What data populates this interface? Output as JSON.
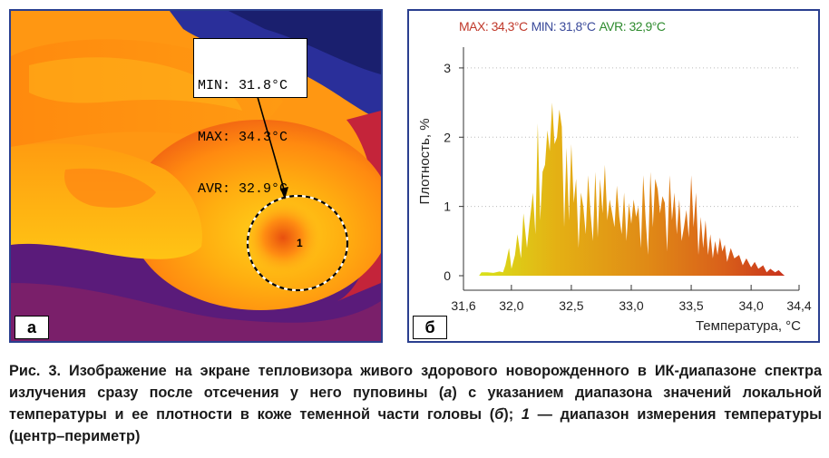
{
  "panel_a": {
    "letter": "а",
    "readout": {
      "min_line": "MIN: 31.8°C",
      "max_line": "MAX: 34.3°C",
      "avr_line": "AVR: 32.9°C"
    },
    "region_marker": "1"
  },
  "panel_b": {
    "letter": "б",
    "legend": {
      "max": "MAX: 34,3°C",
      "min": "MIN: 31,8°C",
      "avr": "AVR: 32,9°C",
      "colors": {
        "max": "#c0392b",
        "min": "#3a4a9a",
        "avr": "#2e8b2e"
      }
    }
  },
  "chart_data": {
    "type": "area",
    "xlabel": "Температура, °C",
    "ylabel": "Плотность, %",
    "xlim": [
      31.6,
      34.4
    ],
    "ylim": [
      0,
      3.3
    ],
    "x_ticks": [
      "31,6",
      "32,0",
      "32,5",
      "33,0",
      "33,5",
      "34,0",
      "34,4"
    ],
    "x_tick_values": [
      31.6,
      32.0,
      32.5,
      33.0,
      33.5,
      34.0,
      34.4
    ],
    "y_ticks": [
      "0",
      "1",
      "2",
      "3"
    ],
    "y_tick_values": [
      0,
      1,
      2,
      3
    ],
    "grid": "dotted-horizontal",
    "series": [
      {
        "x": [
          31.73,
          31.75,
          31.8,
          31.85,
          31.9,
          31.93,
          31.95,
          31.98,
          32.0,
          32.03,
          32.05,
          32.08,
          32.1,
          32.13,
          32.15,
          32.18,
          32.2,
          32.22,
          32.24,
          32.26,
          32.28,
          32.3,
          32.32,
          32.34,
          32.36,
          32.38,
          32.4,
          32.42,
          32.44,
          32.46,
          32.48,
          32.5,
          32.52,
          32.54,
          32.56,
          32.58,
          32.6,
          32.62,
          32.64,
          32.66,
          32.68,
          32.7,
          32.72,
          32.74,
          32.76,
          32.78,
          32.8,
          32.82,
          32.84,
          32.86,
          32.88,
          32.9,
          32.92,
          32.94,
          32.96,
          32.98,
          33.0,
          33.02,
          33.04,
          33.06,
          33.08,
          33.1,
          33.12,
          33.14,
          33.16,
          33.18,
          33.2,
          33.22,
          33.24,
          33.26,
          33.28,
          33.3,
          33.32,
          33.34,
          33.36,
          33.38,
          33.4,
          33.42,
          33.44,
          33.46,
          33.48,
          33.5,
          33.52,
          33.54,
          33.56,
          33.58,
          33.6,
          33.62,
          33.64,
          33.66,
          33.68,
          33.7,
          33.72,
          33.74,
          33.76,
          33.78,
          33.8,
          33.83,
          33.86,
          33.9,
          33.93,
          33.96,
          34.0,
          34.03,
          34.06,
          34.1,
          34.13,
          34.16,
          34.2,
          34.23,
          34.26,
          34.28
        ],
        "values": [
          0.0,
          0.05,
          0.05,
          0.04,
          0.06,
          0.05,
          0.15,
          0.4,
          0.1,
          0.3,
          0.6,
          0.25,
          0.9,
          0.4,
          0.75,
          1.2,
          0.6,
          2.2,
          0.8,
          1.5,
          1.6,
          2.1,
          1.8,
          2.5,
          1.9,
          2.0,
          2.4,
          2.15,
          0.7,
          1.85,
          0.8,
          1.9,
          1.05,
          1.4,
          0.4,
          1.2,
          1.0,
          0.6,
          1.45,
          0.9,
          0.5,
          1.5,
          0.55,
          1.4,
          0.9,
          1.6,
          0.8,
          1.1,
          0.9,
          0.7,
          1.3,
          0.85,
          0.6,
          1.2,
          0.5,
          1.05,
          0.75,
          1.1,
          0.85,
          1.0,
          0.4,
          1.45,
          0.8,
          0.3,
          1.5,
          0.7,
          1.4,
          1.25,
          0.9,
          1.15,
          1.05,
          0.35,
          1.45,
          0.8,
          1.2,
          0.6,
          1.1,
          0.5,
          0.7,
          0.95,
          0.55,
          1.45,
          0.7,
          1.2,
          0.3,
          0.85,
          0.4,
          0.8,
          0.3,
          0.6,
          0.25,
          0.5,
          0.3,
          0.55,
          0.35,
          0.45,
          0.2,
          0.4,
          0.25,
          0.3,
          0.15,
          0.25,
          0.12,
          0.2,
          0.1,
          0.15,
          0.05,
          0.1,
          0.05,
          0.08,
          0.03,
          0.0
        ]
      }
    ]
  },
  "caption": {
    "fig_label": "Рис. 3.",
    "text_1": " Изображение на экране тепловизора живого здорового новорожденного в ИК-диапазоне спектра излучения сразу после отсечения у него пуповины (",
    "ref_a": "а",
    "text_2": ") с указанием диапазона значений локальной температуры и ее плотности в коже теменной части головы (",
    "ref_b": "б",
    "text_3": "); ",
    "ref_1": "1",
    "text_4": " — диапазон измерения температуры (центр–периметр)"
  }
}
